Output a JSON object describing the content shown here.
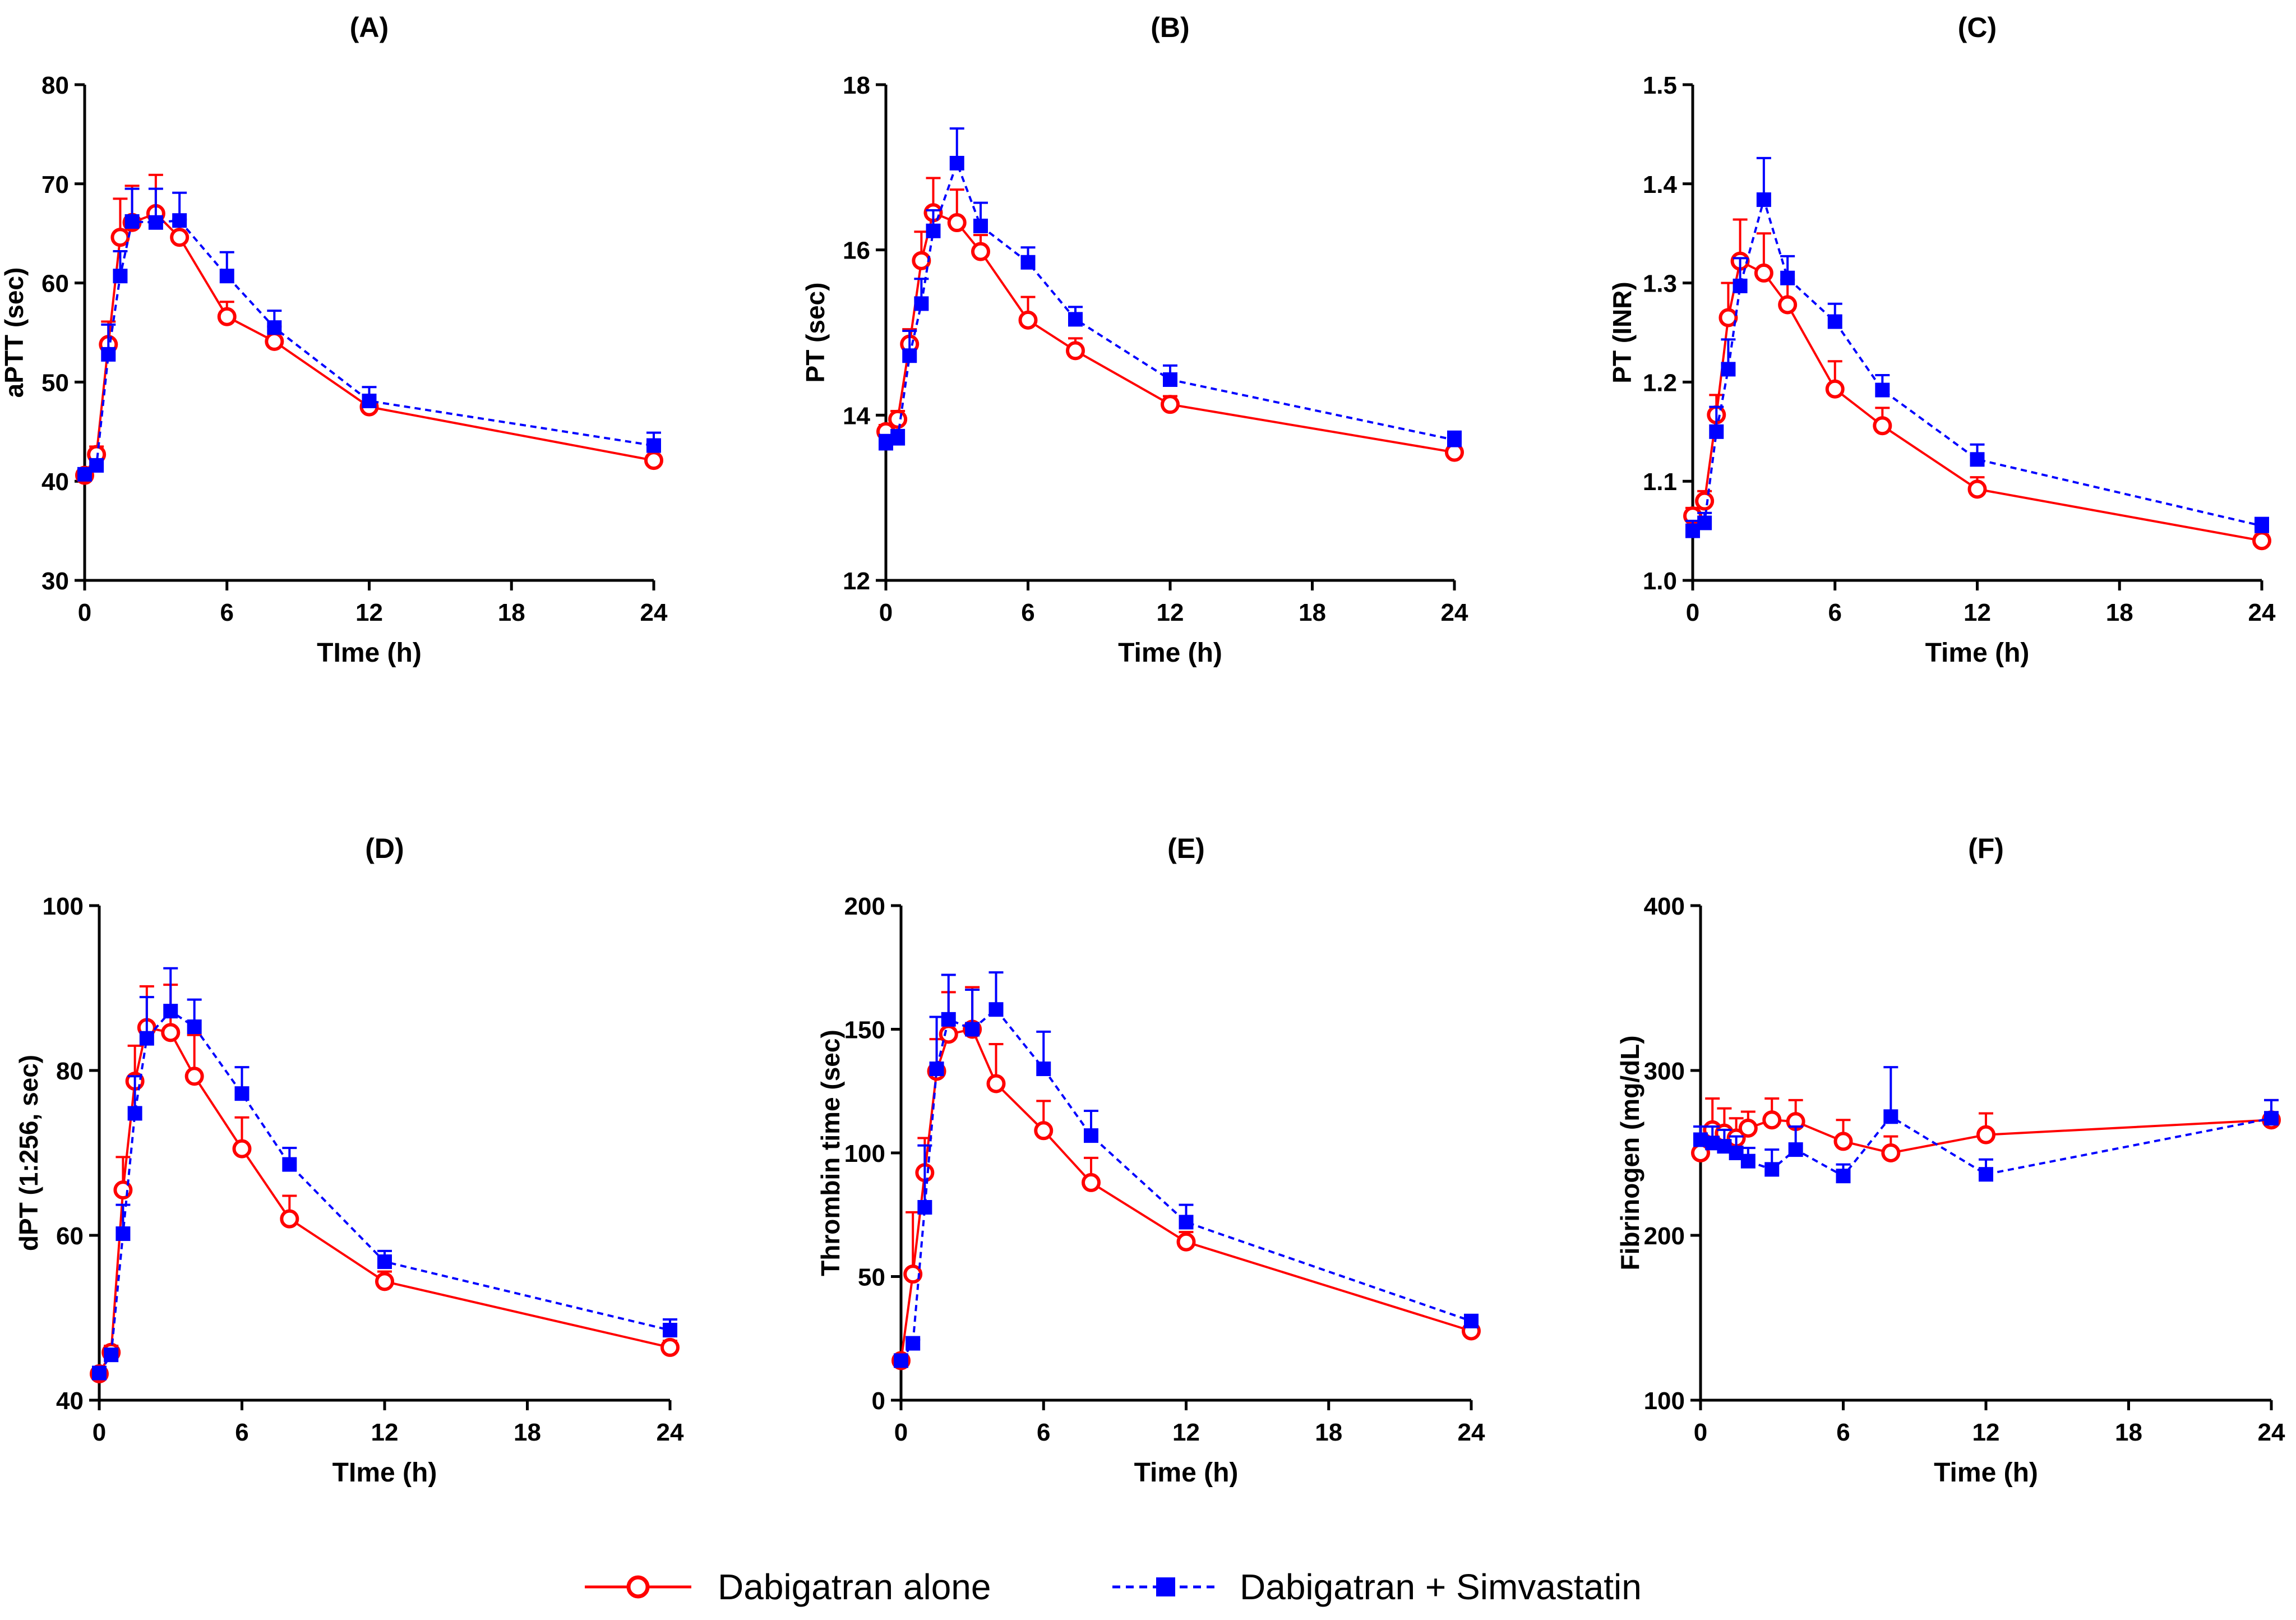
{
  "legend": {
    "alone_label": "Dabigatran alone",
    "combo_label": "Dabigatran + Simvastatin"
  },
  "colors": {
    "alone": "#ff0000",
    "combo": "#0000ff",
    "axis": "#000000"
  },
  "chart_data": [
    {
      "type": "line",
      "title": "(A)",
      "xlabel": "TIme (h)",
      "ylabel": "aPTT (sec)",
      "xlim": [
        0,
        24
      ],
      "ylim": [
        30,
        80
      ],
      "xticks": [
        0,
        6,
        12,
        18,
        24
      ],
      "yticks": [
        30,
        40,
        50,
        60,
        70,
        80
      ],
      "x": [
        0,
        0.5,
        1,
        1.5,
        2,
        3,
        4,
        6,
        8,
        12,
        24
      ],
      "series": [
        {
          "name": "Dabigatran alone",
          "values": [
            40.6,
            42.7,
            53.8,
            64.6,
            66.1,
            67.0,
            64.6,
            56.6,
            54.1,
            47.5,
            42.1
          ],
          "errors": [
            0.4,
            0.8,
            2.3,
            3.9,
            3.7,
            3.9,
            1.8,
            1.5,
            1.5,
            0.8,
            0.5
          ]
        },
        {
          "name": "Dabigatran + Simvastatin",
          "values": [
            40.7,
            41.6,
            52.8,
            60.7,
            66.2,
            66.1,
            66.3,
            60.7,
            55.5,
            48.1,
            43.6
          ],
          "errors": [
            0.5,
            0.6,
            3.0,
            2.5,
            3.3,
            3.4,
            2.8,
            2.4,
            1.7,
            1.4,
            1.3
          ]
        }
      ]
    },
    {
      "type": "line",
      "title": "(B)",
      "xlabel": "Time (h)",
      "ylabel": "PT  (sec)",
      "xlim": [
        0,
        24
      ],
      "ylim": [
        12,
        18
      ],
      "xticks": [
        0,
        6,
        12,
        18,
        24
      ],
      "yticks": [
        12,
        14,
        16,
        18
      ],
      "x": [
        0,
        0.5,
        1,
        1.5,
        2,
        3,
        4,
        6,
        8,
        12,
        24
      ],
      "series": [
        {
          "name": "Dabigatran alone",
          "values": [
            13.8,
            13.95,
            14.86,
            15.87,
            16.45,
            16.33,
            15.98,
            15.15,
            14.78,
            14.13,
            13.55
          ],
          "errors": [
            0.08,
            0.1,
            0.18,
            0.35,
            0.42,
            0.4,
            0.2,
            0.28,
            0.15,
            0.1,
            0.05
          ]
        },
        {
          "name": "Dabigatran + Simvastatin",
          "values": [
            13.66,
            13.72,
            14.72,
            15.35,
            16.23,
            17.05,
            16.29,
            15.85,
            15.16,
            14.43,
            13.7
          ],
          "errors": [
            0.1,
            0.1,
            0.3,
            0.3,
            0.25,
            0.42,
            0.28,
            0.18,
            0.15,
            0.17,
            0.1
          ]
        }
      ]
    },
    {
      "type": "line",
      "title": "(C)",
      "xlabel": "Time (h)",
      "ylabel": "PT (INR)",
      "xlim": [
        0,
        24
      ],
      "ylim": [
        1.0,
        1.5
      ],
      "xticks": [
        0,
        6,
        12,
        18,
        24
      ],
      "yticks": [
        1.0,
        1.1,
        1.2,
        1.3,
        1.4,
        1.5
      ],
      "x": [
        0,
        0.5,
        1,
        1.5,
        2,
        3,
        4,
        6,
        8,
        12,
        24
      ],
      "series": [
        {
          "name": "Dabigatran alone",
          "values": [
            1.065,
            1.08,
            1.167,
            1.265,
            1.322,
            1.31,
            1.278,
            1.193,
            1.156,
            1.092,
            1.04
          ],
          "errors": [
            0.008,
            0.01,
            0.02,
            0.035,
            0.042,
            0.04,
            0.025,
            0.028,
            0.018,
            0.012,
            0.006
          ]
        },
        {
          "name": "Dabigatran + Simvastatin",
          "values": [
            1.05,
            1.058,
            1.15,
            1.213,
            1.297,
            1.384,
            1.305,
            1.261,
            1.192,
            1.122,
            1.055
          ],
          "errors": [
            0.01,
            0.01,
            0.025,
            0.03,
            0.028,
            0.042,
            0.022,
            0.018,
            0.015,
            0.015,
            0.008
          ]
        }
      ]
    },
    {
      "type": "line",
      "title": "(D)",
      "xlabel": "TIme (h)",
      "ylabel": "dPT (1:256, sec)",
      "xlim": [
        0,
        24
      ],
      "ylim": [
        40,
        100
      ],
      "xticks": [
        0,
        6,
        12,
        18,
        24
      ],
      "yticks": [
        40,
        60,
        80,
        100
      ],
      "x": [
        0,
        0.5,
        1,
        1.5,
        2,
        3,
        4,
        6,
        8,
        12,
        24
      ],
      "series": [
        {
          "name": "Dabigatran alone",
          "values": [
            43.2,
            45.8,
            65.5,
            78.7,
            85.2,
            84.6,
            79.3,
            70.5,
            62.0,
            54.4,
            46.4
          ],
          "errors": [
            0.5,
            0.8,
            4.0,
            4.3,
            5.0,
            5.8,
            5.0,
            3.8,
            2.8,
            1.2,
            0.8
          ]
        },
        {
          "name": "Dabigatran + Simvastatin",
          "values": [
            43.3,
            45.5,
            60.2,
            74.8,
            83.9,
            87.2,
            85.3,
            77.2,
            68.6,
            56.8,
            48.5
          ],
          "errors": [
            0.4,
            0.6,
            3.5,
            4.5,
            5.0,
            5.2,
            3.3,
            3.2,
            2.0,
            1.3,
            1.3
          ]
        }
      ]
    },
    {
      "type": "line",
      "title": "(E)",
      "xlabel": "Time (h)",
      "ylabel": "Thrombin time (sec)",
      "xlim": [
        0,
        24
      ],
      "ylim": [
        0,
        200
      ],
      "xticks": [
        0,
        6,
        12,
        18,
        24
      ],
      "yticks": [
        0,
        50,
        100,
        150,
        200
      ],
      "x": [
        0,
        0.5,
        1,
        1.5,
        2,
        3,
        4,
        6,
        8,
        12,
        24
      ],
      "series": [
        {
          "name": "Dabigatran alone",
          "values": [
            16.0,
            51.0,
            92.0,
            133.0,
            148.0,
            150.0,
            128.0,
            109.0,
            88.0,
            64.0,
            28.0
          ],
          "errors": [
            1.5,
            25.0,
            14.0,
            13.0,
            17.0,
            17.0,
            16.0,
            12.0,
            10.0,
            4.0,
            2.0
          ]
        },
        {
          "name": "Dabigatran + Simvastatin",
          "values": [
            16.0,
            23.0,
            78.0,
            134.0,
            154.0,
            150.0,
            158.0,
            134.0,
            107.0,
            72.0,
            32.0
          ],
          "errors": [
            1.0,
            1.5,
            25.0,
            21.0,
            18.0,
            16.0,
            15.0,
            15.0,
            10.0,
            7.0,
            2.5
          ]
        }
      ]
    },
    {
      "type": "line",
      "title": "(F)",
      "xlabel": "Time (h)",
      "ylabel": "Fibrinogen (mg/dL)",
      "xlim": [
        0,
        24
      ],
      "ylim": [
        100,
        400
      ],
      "xticks": [
        0,
        6,
        12,
        18,
        24
      ],
      "yticks": [
        100,
        200,
        300,
        400
      ],
      "x": [
        0,
        0.5,
        1,
        1.5,
        2,
        3,
        4,
        6,
        8,
        12,
        24
      ],
      "series": [
        {
          "name": "Dabigatran alone",
          "values": [
            250.0,
            264.0,
            262.0,
            259.0,
            265.0,
            270.0,
            269.0,
            257.0,
            250.0,
            261.0,
            270.0
          ],
          "errors": [
            6.0,
            19.0,
            15.0,
            12.0,
            10.0,
            13.0,
            13.0,
            13.0,
            10.0,
            13.0,
            12.0
          ]
        },
        {
          "name": "Dabigatran + Simvastatin",
          "values": [
            258.0,
            256.0,
            254.0,
            250.0,
            245.0,
            240.0,
            252.0,
            236.0,
            272.0,
            237.0,
            271.0
          ],
          "errors": [
            8.0,
            10.0,
            10.0,
            10.0,
            8.0,
            12.0,
            14.0,
            7.0,
            30.0,
            9.0,
            11.0
          ]
        }
      ]
    }
  ]
}
